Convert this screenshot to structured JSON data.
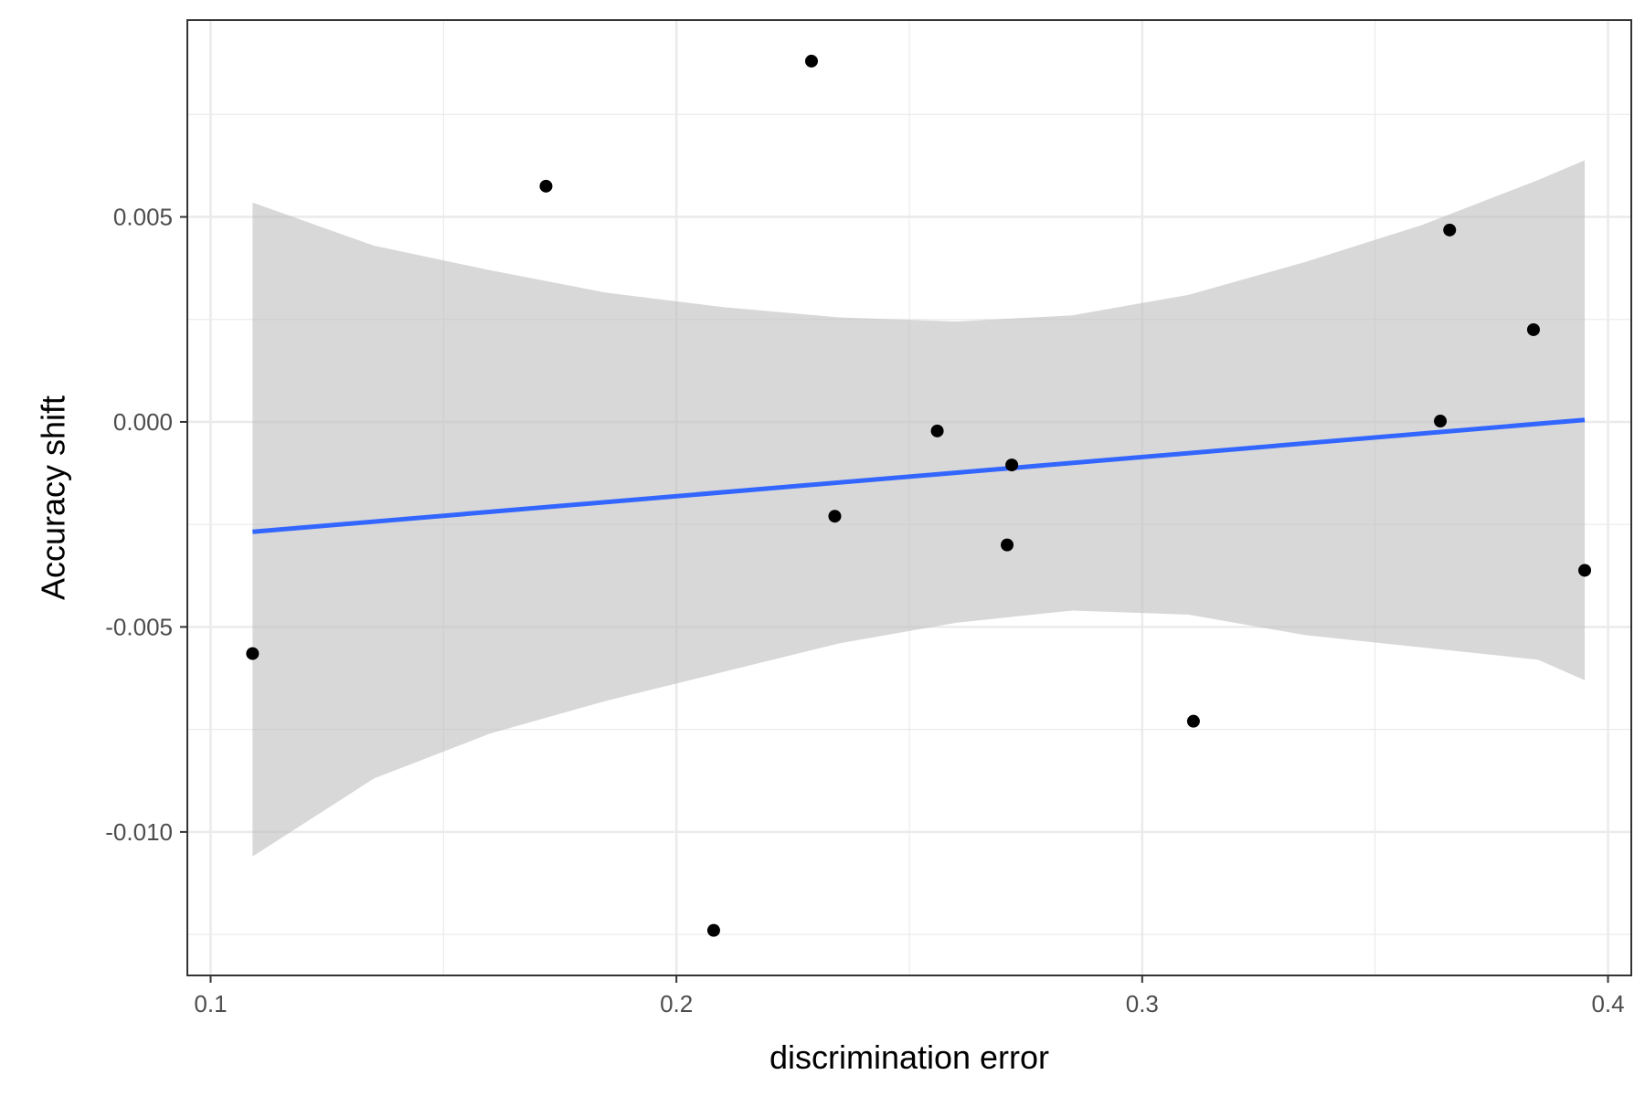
{
  "chart_data": {
    "type": "scatter",
    "title": "",
    "xlabel": "discrimination error",
    "ylabel": "Accuracy shift",
    "xlim": [
      0.095,
      0.405
    ],
    "ylim": [
      -0.0135,
      0.0098
    ],
    "x_ticks": [
      0.1,
      0.2,
      0.3,
      0.4
    ],
    "x_tick_labels": [
      "0.1",
      "0.2",
      "0.3",
      "0.4"
    ],
    "x_minor_ticks": [
      0.15,
      0.25,
      0.35
    ],
    "y_ticks": [
      -0.01,
      -0.005,
      0.0,
      0.005
    ],
    "y_tick_labels": [
      "-0.010",
      "-0.005",
      "0.000",
      "0.005"
    ],
    "y_minor_ticks": [
      -0.0125,
      -0.0075,
      -0.0025,
      0.0025,
      0.0075
    ],
    "grid": true,
    "legend": "none",
    "points": {
      "x": [
        0.109,
        0.172,
        0.208,
        0.229,
        0.234,
        0.256,
        0.271,
        0.272,
        0.311,
        0.364,
        0.366,
        0.384,
        0.395
      ],
      "y": [
        -0.00565,
        0.00575,
        -0.0124,
        0.0088,
        -0.0023,
        -0.00022,
        -0.003,
        -0.00105,
        -0.0073,
        2e-05,
        0.00468,
        0.00225,
        -0.00362
      ],
      "color": "#000000"
    },
    "trend_line": {
      "x": [
        0.109,
        0.395
      ],
      "y": [
        -0.00268,
        5e-05
      ],
      "color": "#3366ff"
    },
    "confidence_band": {
      "x": [
        0.109,
        0.135,
        0.16,
        0.185,
        0.21,
        0.235,
        0.26,
        0.285,
        0.31,
        0.335,
        0.36,
        0.385,
        0.395
      ],
      "upper": [
        0.00535,
        0.0043,
        0.0037,
        0.00315,
        0.0028,
        0.00255,
        0.00245,
        0.0026,
        0.0031,
        0.0039,
        0.0048,
        0.0059,
        0.00638
      ],
      "lower": [
        -0.0106,
        -0.0087,
        -0.0076,
        -0.0068,
        -0.0061,
        -0.0054,
        -0.0049,
        -0.0046,
        -0.0047,
        -0.0052,
        -0.0055,
        -0.0058,
        -0.0063
      ],
      "color": "#bebebe"
    }
  }
}
